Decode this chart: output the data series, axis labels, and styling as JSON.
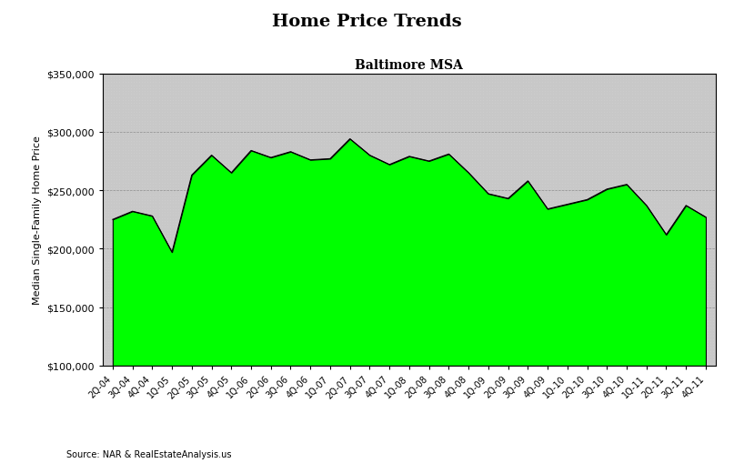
{
  "title": "Home Price Trends",
  "subtitle": "Baltimore MSA",
  "ylabel": "Median Single-Family Home Price",
  "source": "Source: NAR & RealEstateAnalysis.us",
  "fill_color": "#00FF00",
  "fill_edge_color": "#000000",
  "ylim": [
    100000,
    350000
  ],
  "yticks": [
    100000,
    150000,
    200000,
    250000,
    300000,
    350000
  ],
  "x_labels": [
    "2Q-04",
    "3Q-04",
    "4Q-04",
    "1Q-05",
    "2Q-05",
    "3Q-05",
    "4Q-05",
    "1Q-06",
    "2Q-06",
    "3Q-06",
    "4Q-06",
    "1Q-07",
    "2Q-07",
    "3Q-07",
    "4Q-07",
    "1Q-08",
    "2Q-08",
    "3Q-08",
    "4Q-08",
    "1Q-09",
    "2Q-09",
    "3Q-09",
    "4Q-09",
    "1Q-10",
    "2Q-10",
    "3Q-10",
    "4Q-10",
    "1Q-11",
    "2Q-11",
    "3Q-11",
    "4Q-11"
  ],
  "values": [
    225000,
    232000,
    228000,
    197000,
    263000,
    280000,
    265000,
    284000,
    278000,
    283000,
    276000,
    277000,
    294000,
    280000,
    272000,
    279000,
    275000,
    281000,
    265000,
    247000,
    243000,
    258000,
    234000,
    238000,
    242000,
    251000,
    255000,
    237000,
    212000,
    237000,
    227000
  ],
  "title_fontsize": 14,
  "subtitle_fontsize": 10,
  "ylabel_fontsize": 8,
  "tick_fontsize": 8,
  "xtick_fontsize": 7,
  "source_fontsize": 7
}
